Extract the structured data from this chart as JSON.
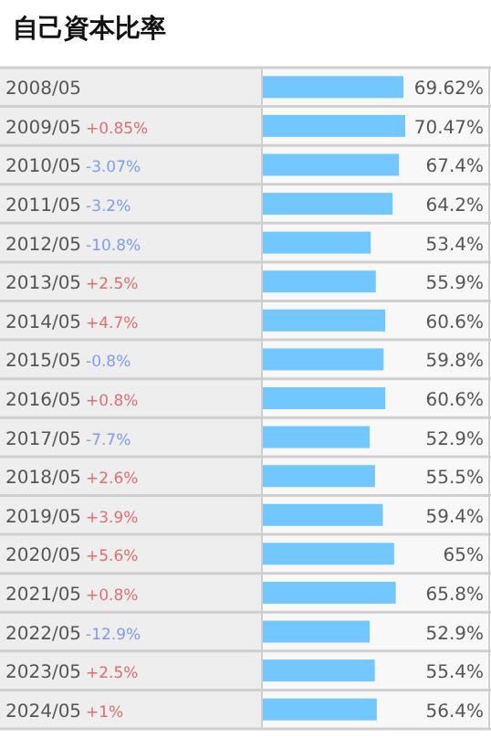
{
  "chart_data": {
    "type": "bar",
    "orientation": "horizontal",
    "title": "自己資本比率",
    "color": "#73c7ff",
    "categories": [
      "2008/05",
      "2009/05",
      "2010/05",
      "2011/05",
      "2012/05",
      "2013/05",
      "2014/05",
      "2015/05",
      "2016/05",
      "2017/05",
      "2018/05",
      "2019/05",
      "2020/05",
      "2021/05",
      "2022/05",
      "2023/05",
      "2024/05"
    ],
    "values": [
      69.62,
      70.47,
      67.4,
      64.2,
      53.4,
      55.9,
      60.6,
      59.8,
      60.6,
      52.9,
      55.5,
      59.4,
      65,
      65.8,
      52.9,
      55.4,
      56.4
    ],
    "value_labels": [
      "69.62%",
      "70.47%",
      "67.4%",
      "64.2%",
      "53.4%",
      "55.9%",
      "60.6%",
      "59.8%",
      "60.6%",
      "52.9%",
      "55.5%",
      "59.4%",
      "65%",
      "65.8%",
      "52.9%",
      "55.4%",
      "56.4%"
    ],
    "annotations": [
      "+0.85%",
      "-3.07%",
      "-3.2%",
      "-10.8%",
      "+2.5%",
      "+4.7%",
      "-0.8%",
      "+0.8%",
      "-7.7%",
      "+2.6%",
      "+3.9%",
      "+5.6%",
      "+0.8%",
      "-12.9%",
      "+2.5%",
      "+1%"
    ]
  }
}
